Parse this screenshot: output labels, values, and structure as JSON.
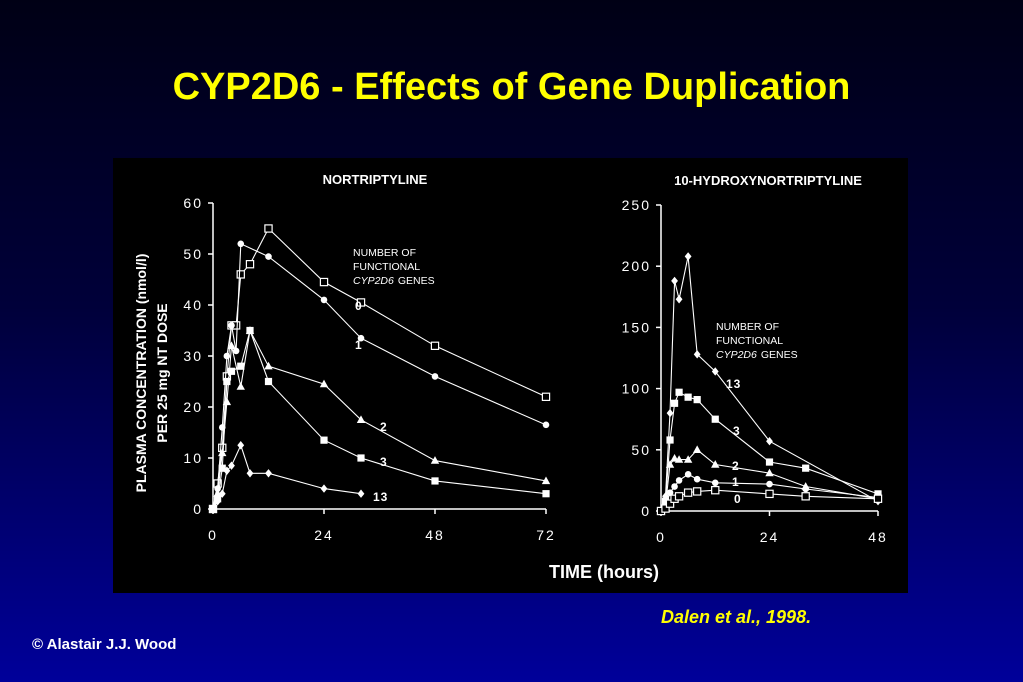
{
  "slide": {
    "title": "CYP2D6 - Effects of Gene Duplication",
    "citation": "Dalen et al., 1998.",
    "copyright": "© Alastair J.J. Wood"
  },
  "colors": {
    "background_top": "#000015",
    "background_bottom": "#00009a",
    "title": "#ffff00",
    "figure_bg": "#000000",
    "ink": "#ffffff"
  },
  "figure": {
    "ylabel_line1": "PLASMA CONCENTRATION (nmol/l)",
    "ylabel_line2": "PER 25 mg NT DOSE",
    "xlabel": "TIME (hours)",
    "legend_line1": "NUMBER OF",
    "legend_line2": "FUNCTIONAL",
    "legend_line3_italic": "CYP2D6",
    "legend_line3_rest": "GENES"
  },
  "chart_data": [
    {
      "type": "line",
      "title": "NORTRIPTYLINE",
      "xlabel": "TIME (hours)",
      "ylabel": "PLASMA CONCENTRATION (nmol/l) PER 25 mg NT DOSE",
      "xlim": [
        0,
        72
      ],
      "ylim": [
        0,
        60
      ],
      "xticks": [
        "0",
        "24",
        "48",
        "72"
      ],
      "yticks": [
        "0",
        "10",
        "20",
        "30",
        "40",
        "50",
        "60"
      ],
      "series": [
        {
          "name": "0",
          "marker": "open-square",
          "x": [
            0,
            1,
            2,
            3,
            4,
            5,
            6,
            8,
            12,
            24,
            32,
            48,
            72
          ],
          "y": [
            0,
            5,
            12,
            26,
            36,
            36,
            46,
            48,
            55,
            44.5,
            40.5,
            32,
            22
          ]
        },
        {
          "name": "1",
          "marker": "circle",
          "x": [
            0,
            1,
            2,
            3,
            4,
            5,
            6,
            12,
            24,
            32,
            48,
            72
          ],
          "y": [
            0,
            4,
            16,
            30,
            36,
            31,
            52,
            49.5,
            41,
            33.5,
            26,
            16.5
          ]
        },
        {
          "name": "2",
          "marker": "triangle",
          "x": [
            0,
            1,
            2,
            3,
            4,
            6,
            8,
            12,
            24,
            32,
            48,
            72
          ],
          "y": [
            0,
            3,
            11,
            21,
            32,
            24,
            35,
            28,
            24.5,
            17.5,
            9.5,
            5.5
          ]
        },
        {
          "name": "3",
          "marker": "filled-square",
          "x": [
            0,
            1,
            2,
            3,
            4,
            6,
            8,
            12,
            24,
            32,
            48,
            72
          ],
          "y": [
            0,
            2,
            8,
            25,
            27,
            28,
            35,
            25,
            13.5,
            10,
            5.5,
            3
          ]
        },
        {
          "name": "13",
          "marker": "diamond",
          "x": [
            0,
            1,
            2,
            3,
            4,
            6,
            8,
            12,
            24,
            32
          ],
          "y": [
            0,
            1.5,
            3,
            7.5,
            8.5,
            12.5,
            7,
            7,
            4,
            3
          ]
        }
      ]
    },
    {
      "type": "line",
      "title": "10-HYDROXYNORTRIPTYLINE",
      "xlim": [
        0,
        48
      ],
      "ylim": [
        0,
        250
      ],
      "xticks": [
        "0",
        "24",
        "48"
      ],
      "yticks": [
        "0",
        "50",
        "100",
        "150",
        "200",
        "250"
      ],
      "series": [
        {
          "name": "13",
          "marker": "diamond",
          "x": [
            0,
            1,
            2,
            3,
            4,
            6,
            8,
            12,
            24,
            48
          ],
          "y": [
            0,
            12,
            80,
            188,
            173,
            208,
            128,
            114,
            57,
            8
          ]
        },
        {
          "name": "3",
          "marker": "filled-square",
          "x": [
            0,
            1,
            2,
            3,
            4,
            6,
            8,
            12,
            24,
            32,
            48
          ],
          "y": [
            0,
            8,
            58,
            88,
            97,
            93,
            91,
            75,
            40,
            35,
            14
          ]
        },
        {
          "name": "2",
          "marker": "triangle",
          "x": [
            0,
            1,
            2,
            3,
            4,
            6,
            8,
            12,
            24,
            32,
            48
          ],
          "y": [
            0,
            5,
            38,
            43,
            42,
            42,
            50,
            38,
            31,
            20,
            10
          ]
        },
        {
          "name": "1",
          "marker": "circle",
          "x": [
            0,
            1,
            2,
            3,
            4,
            6,
            8,
            12,
            24,
            32,
            48
          ],
          "y": [
            0,
            3,
            15,
            20,
            25,
            30,
            26,
            23,
            22,
            18,
            11
          ]
        },
        {
          "name": "0",
          "marker": "open-square",
          "x": [
            0,
            1,
            2,
            3,
            4,
            6,
            8,
            12,
            24,
            32,
            48
          ],
          "y": [
            0,
            2,
            6,
            10,
            12,
            15,
            16,
            17,
            14,
            12,
            10
          ]
        }
      ]
    }
  ]
}
